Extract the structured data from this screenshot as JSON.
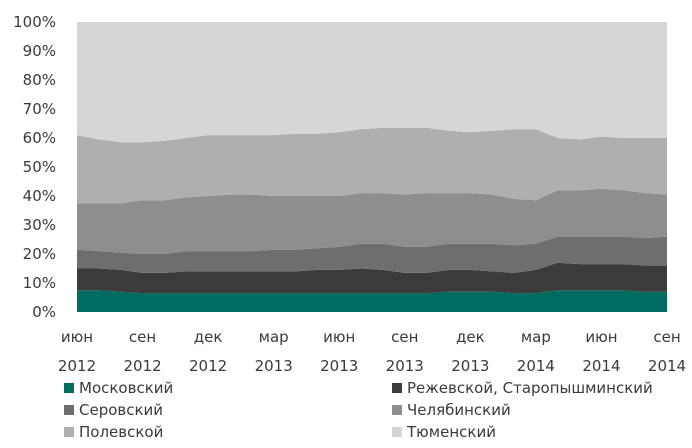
{
  "chart_data": {
    "type": "area",
    "stacked": true,
    "percent": true,
    "x": [
      "июн 2012",
      "июл 2012",
      "авг 2012",
      "сен 2012",
      "окт 2012",
      "ноя 2012",
      "дек 2012",
      "янв 2013",
      "фев 2013",
      "мар 2013",
      "апр 2013",
      "май 2013",
      "июн 2013",
      "июл 2013",
      "авг 2013",
      "сен 2013",
      "окт 2013",
      "ноя 2013",
      "дек 2013",
      "янв 2014",
      "фев 2014",
      "мар 2014",
      "апр 2014",
      "май 2014",
      "июн 2014",
      "июл 2014",
      "авг 2014",
      "сен 2014"
    ],
    "x_ticks": [
      {
        "index": 0,
        "line1": "июн",
        "line2": "2012"
      },
      {
        "index": 3,
        "line1": "сен",
        "line2": "2012"
      },
      {
        "index": 6,
        "line1": "дек",
        "line2": "2012"
      },
      {
        "index": 9,
        "line1": "мар",
        "line2": "2013"
      },
      {
        "index": 12,
        "line1": "июн",
        "line2": "2013"
      },
      {
        "index": 15,
        "line1": "сен",
        "line2": "2013"
      },
      {
        "index": 18,
        "line1": "дек",
        "line2": "2013"
      },
      {
        "index": 21,
        "line1": "мар",
        "line2": "2014"
      },
      {
        "index": 24,
        "line1": "июн",
        "line2": "2014"
      },
      {
        "index": 27,
        "line1": "сен",
        "line2": "2014"
      }
    ],
    "y_ticks": [
      "0%",
      "10%",
      "20%",
      "30%",
      "40%",
      "50%",
      "60%",
      "70%",
      "80%",
      "90%",
      "100%"
    ],
    "ylim": [
      0,
      100
    ],
    "series": [
      {
        "name": "Московский",
        "color": "#006b60",
        "values": [
          7.5,
          7.5,
          7.0,
          6.5,
          6.5,
          6.5,
          6.5,
          6.5,
          6.5,
          6.5,
          6.5,
          6.5,
          6.5,
          6.5,
          6.5,
          6.5,
          6.5,
          7.0,
          7.0,
          7.0,
          6.5,
          6.5,
          7.5,
          7.5,
          7.5,
          7.5,
          7.0,
          7.0
        ]
      },
      {
        "name": "Режевской, Старопышминский",
        "color": "#3b3b3b",
        "values": [
          7.5,
          7.5,
          7.5,
          7.0,
          7.0,
          7.5,
          7.5,
          7.5,
          7.5,
          7.5,
          7.5,
          8.0,
          8.0,
          8.5,
          8.0,
          7.0,
          7.0,
          7.5,
          7.5,
          7.0,
          7.0,
          8.0,
          9.5,
          9.0,
          9.0,
          9.0,
          9.0,
          9.0
        ]
      },
      {
        "name": "Серовский",
        "color": "#6e6e6e",
        "values": [
          6.5,
          6.0,
          6.0,
          6.5,
          6.5,
          7.0,
          7.0,
          7.0,
          7.0,
          7.5,
          7.5,
          7.5,
          8.0,
          8.5,
          9.0,
          9.0,
          9.0,
          9.0,
          9.0,
          9.5,
          9.5,
          9.0,
          9.0,
          9.5,
          9.5,
          9.5,
          9.5,
          10.0
        ]
      },
      {
        "name": "Челябинский",
        "color": "#8e8e8e",
        "values": [
          16.0,
          16.5,
          17.0,
          18.5,
          18.5,
          18.5,
          19.0,
          19.5,
          19.5,
          18.5,
          18.5,
          18.0,
          17.5,
          17.5,
          17.5,
          18.0,
          18.5,
          17.5,
          17.5,
          17.0,
          16.0,
          15.0,
          16.0,
          16.0,
          16.5,
          16.0,
          15.5,
          14.5
        ]
      },
      {
        "name": "Полевской",
        "color": "#afafaf",
        "values": [
          23.5,
          22.0,
          21.0,
          20.0,
          20.5,
          20.5,
          21.0,
          20.5,
          20.5,
          21.0,
          21.5,
          21.5,
          22.0,
          22.0,
          22.5,
          23.0,
          22.5,
          21.5,
          21.0,
          22.0,
          24.0,
          24.5,
          18.0,
          17.5,
          18.0,
          18.0,
          19.0,
          19.5
        ]
      },
      {
        "name": "Тюменский",
        "color": "#d6d6d6",
        "values": [
          39.0,
          40.5,
          41.5,
          41.5,
          41.0,
          40.0,
          39.0,
          39.0,
          39.0,
          39.0,
          38.5,
          38.5,
          38.0,
          37.0,
          36.5,
          36.5,
          36.5,
          37.5,
          38.0,
          37.5,
          37.0,
          37.0,
          40.0,
          40.5,
          39.5,
          40.0,
          40.0,
          40.0
        ]
      }
    ],
    "legend": {
      "position": "bottom",
      "columns": 2,
      "order": [
        0,
        1,
        2,
        3,
        4,
        5
      ]
    },
    "grid": false
  }
}
